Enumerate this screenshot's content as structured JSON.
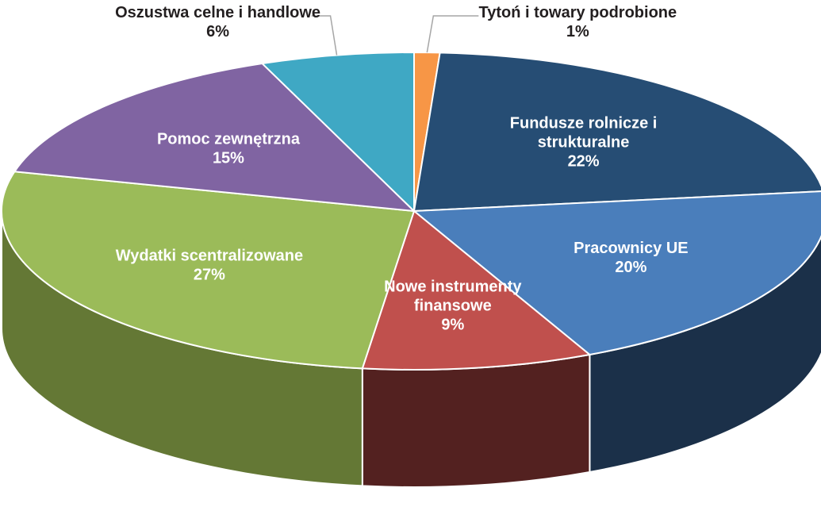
{
  "chart_data": {
    "type": "pie",
    "variant": "3d",
    "slices": [
      {
        "label_lines": [
          "Tytoń i towary podrobione"
        ],
        "value_label": "1%",
        "value": 1,
        "color": "#f79646",
        "side_color": "#9a5a22",
        "label_color": "#231f20",
        "label_position": "outside"
      },
      {
        "label_lines": [
          "Fundusze rolnicze i",
          "strukturalne"
        ],
        "value_label": "22%",
        "value": 22,
        "color": "#264d74",
        "side_color": "#1a3350",
        "label_color": "#ffffff",
        "label_position": "inside"
      },
      {
        "label_lines": [
          "Pracownicy UE"
        ],
        "value_label": "20%",
        "value": 20,
        "color": "#4a7ebb",
        "side_color": "#1b3049",
        "label_color": "#ffffff",
        "label_position": "inside"
      },
      {
        "label_lines": [
          "Nowe instrumenty",
          "finansowe"
        ],
        "value_label": "9%",
        "value": 9,
        "color": "#c0504d",
        "side_color": "#532120",
        "label_color": "#ffffff",
        "label_position": "inside"
      },
      {
        "label_lines": [
          "Wydatki scentralizowane"
        ],
        "value_label": "27%",
        "value": 27,
        "color": "#9bbb59",
        "side_color": "#647835",
        "label_color": "#ffffff",
        "label_position": "inside"
      },
      {
        "label_lines": [
          "Pomoc zewnętrzna"
        ],
        "value_label": "15%",
        "value": 15,
        "color": "#8064a2",
        "side_color": "#4f3d66",
        "label_color": "#ffffff",
        "label_position": "inside"
      },
      {
        "label_lines": [
          "Oszustwa celne i handlowe"
        ],
        "value_label": "6%",
        "value": 6,
        "color": "#3fa8c4",
        "side_color": "#246b80",
        "label_color": "#231f20",
        "label_position": "outside"
      }
    ]
  }
}
